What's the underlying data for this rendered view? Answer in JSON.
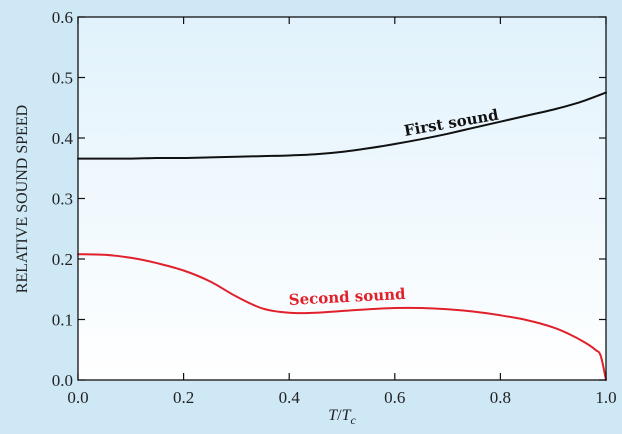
{
  "chart_data": {
    "type": "line",
    "xlabel_main": "T",
    "xlabel_slash": "/",
    "xlabel_denom": "T",
    "xlabel_sub": "c",
    "ylabel": "RELATIVE SOUND SPEED",
    "xlim": [
      0.0,
      1.0
    ],
    "ylim": [
      0.0,
      0.6
    ],
    "xticks": [
      "0.0",
      "0.2",
      "0.4",
      "0.6",
      "0.8",
      "1.0"
    ],
    "yticks": [
      "0.0",
      "0.1",
      "0.2",
      "0.3",
      "0.4",
      "0.5",
      "0.6"
    ],
    "grid": false,
    "colors": {
      "first": "#111111",
      "second": "#e0202a",
      "frame": "#111111"
    },
    "series": [
      {
        "name": "First sound",
        "x": [
          0.0,
          0.05,
          0.1,
          0.15,
          0.2,
          0.25,
          0.3,
          0.35,
          0.4,
          0.45,
          0.5,
          0.55,
          0.6,
          0.65,
          0.7,
          0.75,
          0.8,
          0.85,
          0.9,
          0.95,
          1.0
        ],
        "y": [
          0.366,
          0.366,
          0.366,
          0.367,
          0.367,
          0.368,
          0.369,
          0.37,
          0.371,
          0.373,
          0.377,
          0.383,
          0.39,
          0.398,
          0.407,
          0.417,
          0.427,
          0.437,
          0.447,
          0.459,
          0.475
        ]
      },
      {
        "name": "Second sound",
        "x": [
          0.0,
          0.05,
          0.1,
          0.15,
          0.2,
          0.25,
          0.3,
          0.35,
          0.4,
          0.45,
          0.5,
          0.55,
          0.6,
          0.65,
          0.7,
          0.75,
          0.8,
          0.85,
          0.9,
          0.93,
          0.96,
          0.98,
          0.99,
          1.0
        ],
        "y": [
          0.208,
          0.207,
          0.202,
          0.193,
          0.181,
          0.163,
          0.138,
          0.118,
          0.111,
          0.111,
          0.114,
          0.117,
          0.119,
          0.119,
          0.117,
          0.113,
          0.107,
          0.099,
          0.087,
          0.076,
          0.062,
          0.05,
          0.04,
          0.0
        ]
      }
    ]
  }
}
